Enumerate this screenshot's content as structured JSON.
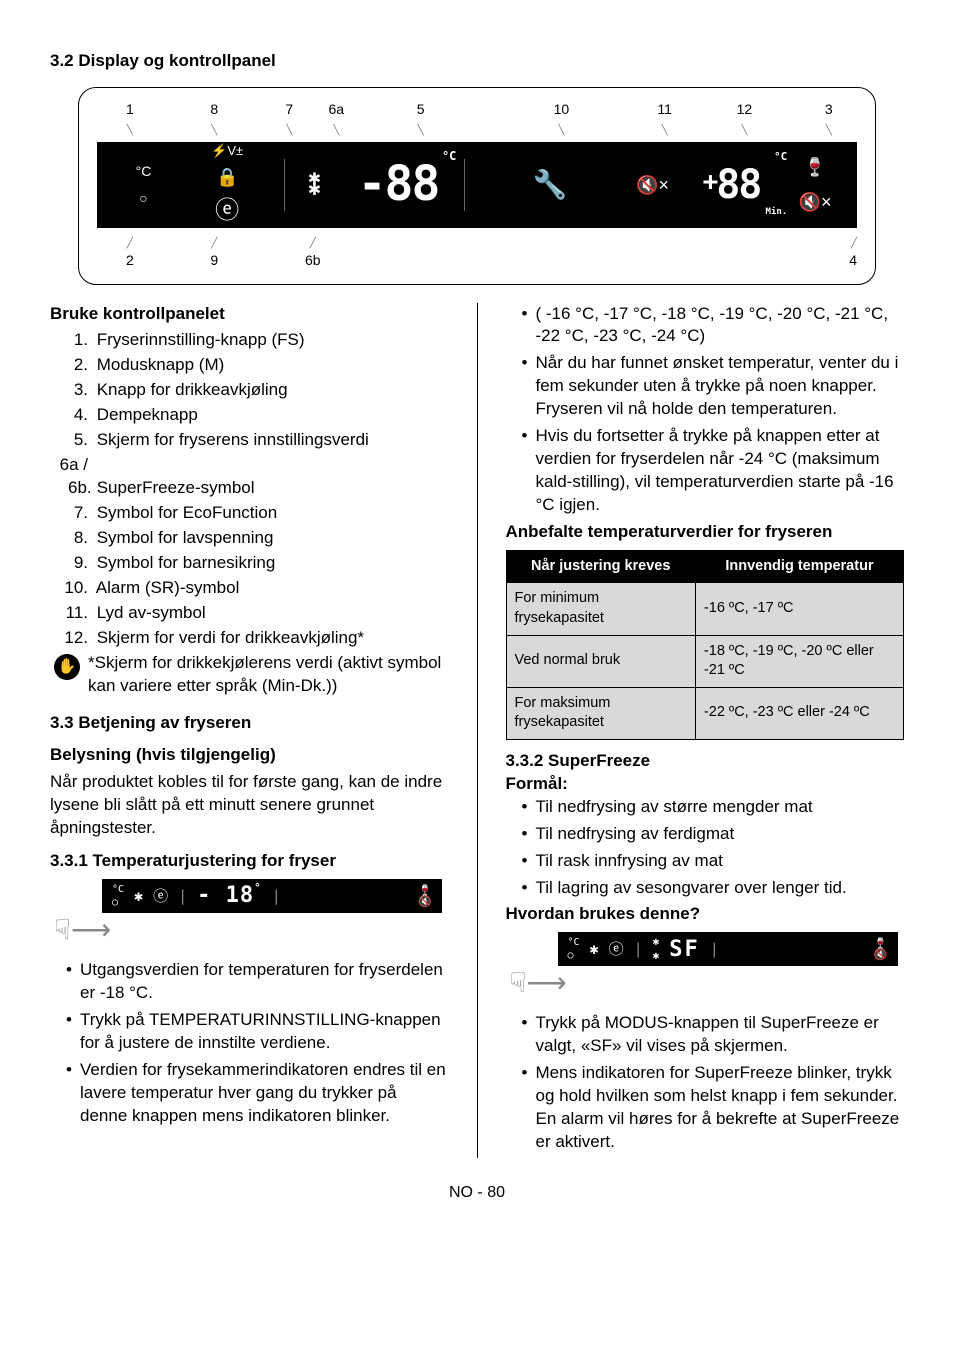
{
  "title_3_2": "3.2 Display og kontrollpanel",
  "diagram": {
    "top_labels": [
      "1",
      "8",
      "7",
      "6a",
      "5",
      "10",
      "11",
      "12",
      "3"
    ],
    "top_widths": [
      70,
      110,
      50,
      50,
      130,
      170,
      50,
      120,
      60
    ],
    "bottom_labels": [
      "2",
      "9",
      "6b",
      "4"
    ],
    "bottom_widths": [
      70,
      110,
      100,
      530
    ],
    "panel": {
      "deg_c": "°C",
      "circle": "○",
      "volt": "⚡V±",
      "lock": "🔒",
      "eco": "ⓔ",
      "star_top": "✱",
      "star_bot": "✱",
      "big88a": "-88",
      "degc_small": "°C",
      "wrench": "🔧",
      "mute": "🔇×",
      "plus": "+",
      "big88b": "88",
      "degc_small2": "°C",
      "min": "Min.",
      "glass": "🍷",
      "mute2": "🔇×"
    }
  },
  "use_panel_head": "Bruke kontrollpanelet",
  "numbered": [
    {
      "n": "1.",
      "t": "Fryserinnstilling-knapp (FS)"
    },
    {
      "n": "2.",
      "t": "Modusknapp (M)"
    },
    {
      "n": "3.",
      "t": "Knapp for drikkeavkjøling"
    },
    {
      "n": "4.",
      "t": "Dempeknapp"
    },
    {
      "n": "5.",
      "t": "Skjerm for fryserens innstillingsverdi"
    },
    {
      "n": "6a / 6b.",
      "t": "SuperFreeze-symbol"
    },
    {
      "n": "7.",
      "t": "Symbol for EcoFunction"
    },
    {
      "n": "8.",
      "t": "Symbol for lavspenning"
    },
    {
      "n": "9.",
      "t": "Symbol for barnesikring"
    },
    {
      "n": "10.",
      "t": "Alarm (SR)-symbol"
    },
    {
      "n": "11.",
      "t": "Lyd av-symbol"
    },
    {
      "n": "12.",
      "t": "Skjerm for verdi for drikkeavkjøling*"
    }
  ],
  "note_star": "*Skjerm for drikkekjølerens verdi (aktivt symbol kan variere etter språk (Min-Dk.))",
  "title_3_3": "3.3 Betjening av fryseren",
  "belysning_head": "Belysning (hvis tilgjengelig)",
  "belysning_body": "Når produktet kobles til for første gang, kan de indre lysene bli slått på ett minutt senere grunnet åpningstester.",
  "title_3_3_1": "3.3.1 Temperaturjustering for fryser",
  "mini1": {
    "val": "- 18",
    "deg": "°",
    "glass": "🍷",
    "mute": "🔇"
  },
  "left_bullets": [
    "Utgangsverdien for temperaturen for fryserdelen er -18 °C.",
    "Trykk på TEMPERATURINNSTILLING-knappen for å justere de innstilte verdiene.",
    "Verdien for frysekammerindikatoren endres til en lavere temperatur hver gang du trykker på denne knappen mens indikatoren blinker."
  ],
  "right_bullets_top": [
    "( -16 °C, -17 °C, -18 °C, -19 °C, -20 °C, -21 °C, -22 °C, -23 °C, -24 °C)",
    "Når du har funnet ønsket temperatur, venter du i fem sekunder uten å trykke på noen knapper. Fryseren vil nå holde den temperaturen.",
    "Hvis du fortsetter å trykke på knappen etter at verdien for fryserdelen når -24 °C (maksimum kald-stilling), vil temperaturverdien starte på -16 °C igjen."
  ],
  "anbefalte_head": "Anbefalte temperaturverdier for fryseren",
  "table": {
    "th1": "Når justering kreves",
    "th2": "Innvendig temperatur",
    "rows": [
      [
        "For minimum frysekapasitet",
        "-16 ºC, -17 ºC"
      ],
      [
        "Ved normal bruk",
        "-18 ºC, -19 ºC, -20 ºC eller -21 ºC"
      ],
      [
        "For maksimum frysekapasitet",
        "-22 ºC, -23 ºC eller -24 ºC"
      ]
    ]
  },
  "title_3_3_2": "3.3.2 SuperFreeze",
  "formal": "Formål:",
  "formal_bullets": [
    "Til nedfrysing av større mengder mat",
    "Til nedfrysing av ferdigmat",
    "Til rask innfrysing av mat",
    "Til lagring av sesongvarer over lenger tid."
  ],
  "hvordan": "Hvordan brukes denne?",
  "mini2": {
    "val": "SF",
    "glass": "🍷",
    "mute": "🔇"
  },
  "sf_bullets": [
    "Trykk på MODUS-knappen til SuperFreeze er valgt, «SF» vil vises på skjermen.",
    "Mens indikatoren for SuperFreeze blinker, trykk og hold hvilken som helst knapp i fem sekunder. En alarm vil høres for å bekrefte at SuperFreeze er aktivert."
  ],
  "footer": "NO - 80"
}
